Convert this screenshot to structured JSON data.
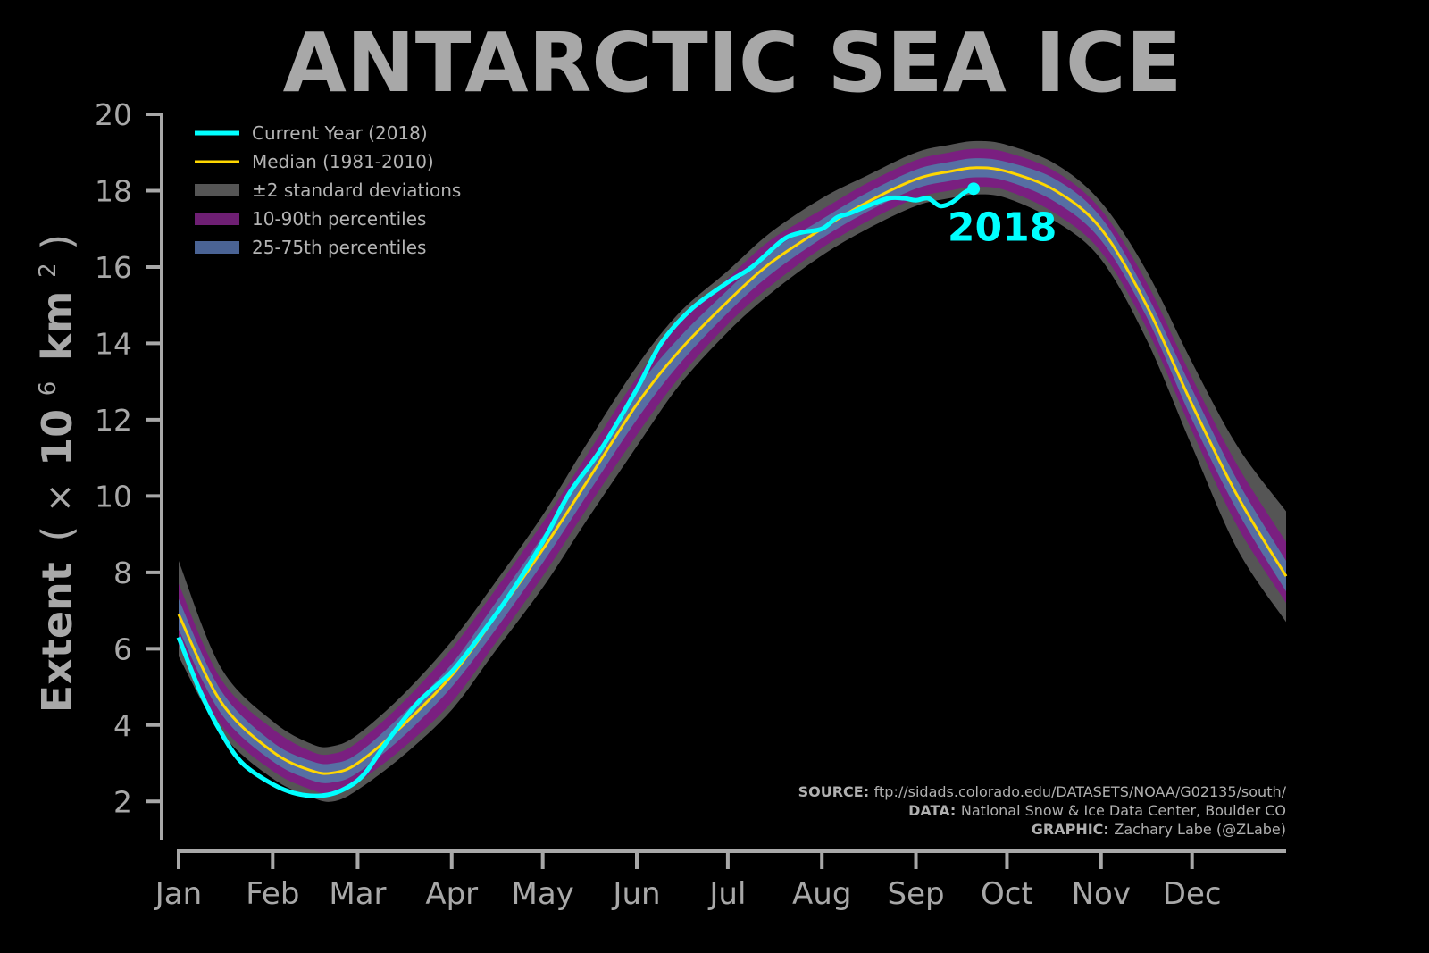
{
  "chart_data": {
    "type": "line",
    "title": "ANTARCTIC SEA ICE",
    "ylabel_main": "Extent",
    "ylabel_unit_prefix": "(",
    "ylabel_unit_times": "×",
    "ylabel_unit_base": "10",
    "ylabel_unit_exp": "6",
    "ylabel_unit_km": "km",
    "ylabel_unit_sq": "2",
    "ylabel_unit_suffix": ")",
    "ylim": [
      1,
      20
    ],
    "yticks": [
      "2",
      "4",
      "6",
      "8",
      "10",
      "12",
      "14",
      "16",
      "18",
      "20"
    ],
    "xlim": [
      1,
      366
    ],
    "months": [
      "Jan",
      "Feb",
      "Mar",
      "Apr",
      "May",
      "Jun",
      "Jul",
      "Aug",
      "Sep",
      "Oct",
      "Nov",
      "Dec"
    ],
    "month_start_days": [
      1,
      32,
      60,
      91,
      121,
      152,
      182,
      213,
      244,
      274,
      305,
      335
    ],
    "climatology_days": [
      1,
      15,
      32,
      45,
      52,
      60,
      75,
      91,
      105,
      121,
      135,
      152,
      166,
      182,
      196,
      213,
      228,
      244,
      255,
      264,
      274,
      290,
      305,
      320,
      335,
      350,
      366
    ],
    "median": [
      6.9,
      4.6,
      3.3,
      2.8,
      2.75,
      3.0,
      4.0,
      5.3,
      6.8,
      8.6,
      10.3,
      12.4,
      13.8,
      15.1,
      16.1,
      17.0,
      17.7,
      18.3,
      18.5,
      18.6,
      18.5,
      18.0,
      17.0,
      15.0,
      12.4,
      10.0,
      7.9
    ],
    "sd2_low": [
      5.8,
      3.8,
      2.6,
      2.1,
      2.0,
      2.3,
      3.2,
      4.4,
      5.9,
      7.6,
      9.3,
      11.3,
      12.9,
      14.3,
      15.3,
      16.3,
      17.0,
      17.6,
      17.8,
      17.9,
      17.8,
      17.2,
      16.2,
      14.1,
      11.3,
      8.6,
      6.7
    ],
    "sd2_high": [
      8.3,
      5.5,
      4.1,
      3.5,
      3.45,
      3.75,
      4.8,
      6.2,
      7.7,
      9.5,
      11.3,
      13.4,
      14.8,
      15.9,
      16.9,
      17.8,
      18.4,
      19.0,
      19.2,
      19.3,
      19.2,
      18.7,
      17.7,
      15.9,
      13.5,
      11.3,
      9.6
    ],
    "p10_low": [
      6.1,
      4.0,
      2.8,
      2.3,
      2.2,
      2.5,
      3.4,
      4.6,
      6.1,
      7.9,
      9.6,
      11.6,
      13.1,
      14.5,
      15.5,
      16.5,
      17.2,
      17.8,
      18.0,
      18.1,
      18.0,
      17.4,
      16.4,
      14.4,
      11.7,
      9.2,
      7.2
    ],
    "p90_high": [
      7.7,
      5.2,
      3.9,
      3.3,
      3.25,
      3.55,
      4.6,
      6.0,
      7.5,
      9.3,
      11.0,
      13.1,
      14.5,
      15.7,
      16.7,
      17.5,
      18.2,
      18.8,
      19.0,
      19.1,
      19.0,
      18.5,
      17.5,
      15.6,
      13.1,
      10.8,
      8.8
    ],
    "p25_low": [
      6.5,
      4.3,
      3.05,
      2.55,
      2.5,
      2.75,
      3.7,
      5.0,
      6.45,
      8.25,
      9.95,
      12.0,
      13.45,
      14.8,
      15.8,
      16.75,
      17.45,
      18.05,
      18.25,
      18.35,
      18.25,
      17.7,
      16.7,
      14.7,
      12.0,
      9.6,
      7.5
    ],
    "p75_high": [
      7.3,
      4.9,
      3.55,
      3.05,
      3.0,
      3.25,
      4.3,
      5.6,
      7.15,
      8.95,
      10.65,
      12.8,
      14.15,
      15.4,
      16.4,
      17.25,
      17.95,
      18.55,
      18.75,
      18.85,
      18.75,
      18.3,
      17.3,
      15.3,
      12.8,
      10.4,
      8.3
    ],
    "current_days": [
      1,
      8,
      15,
      22,
      32,
      40,
      48,
      55,
      62,
      70,
      80,
      91,
      100,
      110,
      121,
      130,
      140,
      152,
      160,
      170,
      182,
      190,
      200,
      206,
      213,
      218,
      222,
      228,
      235,
      240,
      244,
      248,
      252,
      256,
      260,
      263
    ],
    "current_values": [
      6.3,
      4.9,
      3.8,
      3.0,
      2.45,
      2.2,
      2.15,
      2.3,
      2.7,
      3.6,
      4.6,
      5.4,
      6.3,
      7.4,
      8.8,
      10.1,
      11.2,
      12.8,
      14.0,
      14.9,
      15.6,
      16.0,
      16.7,
      16.9,
      17.0,
      17.3,
      17.4,
      17.6,
      17.8,
      17.8,
      17.75,
      17.8,
      17.6,
      17.7,
      17.95,
      18.05
    ],
    "current_label": "2018",
    "legend": {
      "placement": "top-left",
      "entries": [
        {
          "label": "Current Year (2018)",
          "color": "#00ffff"
        },
        {
          "label": "Median (1981-2010)",
          "color": "#ffd700"
        },
        {
          "label": "±2 standard deviations",
          "color": "#555555"
        },
        {
          "label": "10-90th percentiles",
          "color": "#6e1f73"
        },
        {
          "label": "25-75th percentiles",
          "color": "#4a6394"
        }
      ]
    },
    "colors": {
      "current": "#00ffff",
      "median": "#ffd700",
      "sd2": "#555555",
      "p10_90": "#7a1f80",
      "p25_75": "#566fa3",
      "axis": "#a8a8a8"
    },
    "credits": [
      {
        "label": "SOURCE:",
        "text": "ftp://sidads.colorado.edu/DATASETS/NOAA/G02135/south/"
      },
      {
        "label": "DATA:",
        "text": "National Snow & Ice Data Center, Boulder CO"
      },
      {
        "label": "GRAPHIC:",
        "text": "Zachary Labe (@ZLabe)"
      }
    ]
  }
}
